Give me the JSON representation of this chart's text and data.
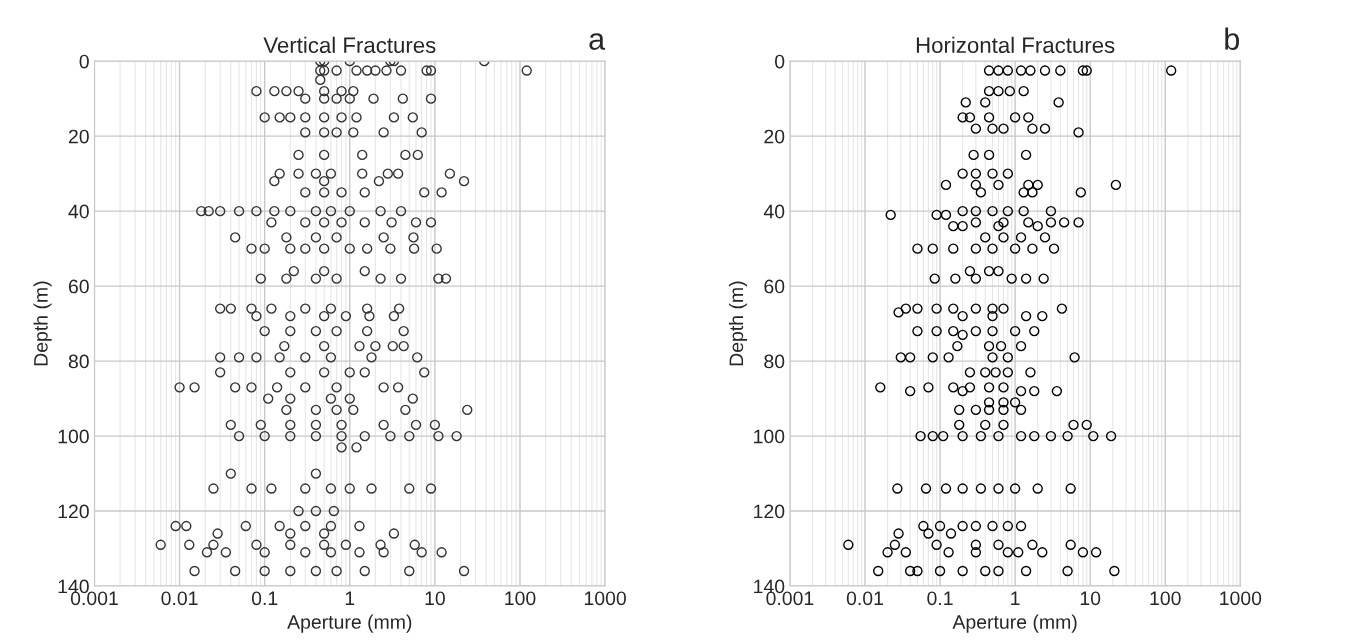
{
  "chart_data": [
    {
      "type": "scatter",
      "title": "Vertical Fractures",
      "xlabel": "Aperture (mm)",
      "ylabel": "Depth (m)",
      "annotations": [
        "a"
      ],
      "log": "x",
      "grid": true,
      "marker": "circle",
      "xlim": [
        0.001,
        1000
      ],
      "xticks": [
        0.001,
        0.01,
        0.1,
        1,
        10,
        100,
        1000
      ],
      "ylim": [
        140,
        0
      ],
      "yticks": [
        0,
        20,
        40,
        60,
        80,
        100,
        120,
        140
      ],
      "series": [
        {
          "color": "#333333",
          "x": [
            0.45,
            0.5,
            1,
            3,
            3.3,
            38,
            0.45,
            0.5,
            0.7,
            1.2,
            1.6,
            2,
            2.7,
            4,
            8,
            9,
            120,
            0.45,
            0.08,
            0.13,
            0.18,
            0.25,
            0.5,
            0.8,
            1.1,
            0.3,
            0.5,
            0.7,
            1,
            1.9,
            4.2,
            9,
            0.1,
            0.15,
            0.2,
            0.3,
            0.5,
            0.8,
            1.2,
            3.3,
            5.5,
            0.3,
            0.5,
            0.7,
            1.1,
            2.5,
            7,
            0.25,
            0.5,
            1.4,
            4.5,
            6.3,
            0.15,
            0.25,
            0.4,
            0.6,
            1.4,
            2.8,
            3.7,
            15,
            0.13,
            0.5,
            2.2,
            22,
            0.3,
            0.5,
            0.8,
            1.5,
            7.5,
            12,
            0.018,
            0.022,
            0.03,
            0.05,
            0.08,
            0.13,
            0.2,
            0.4,
            0.6,
            1,
            2.3,
            4,
            0.12,
            0.3,
            0.5,
            0.8,
            1.5,
            3.1,
            6,
            9,
            0.045,
            0.18,
            0.4,
            0.7,
            2.5,
            5.6,
            0.07,
            0.1,
            0.2,
            0.3,
            0.5,
            1,
            1.6,
            3,
            5.7,
            10.5,
            0.22,
            0.5,
            1.5,
            0.09,
            0.18,
            0.4,
            0.7,
            2.3,
            4,
            11,
            13.5,
            0.03,
            0.04,
            0.07,
            0.12,
            0.3,
            0.6,
            1.6,
            3.8,
            0.08,
            0.2,
            0.5,
            0.9,
            1.7,
            3.3,
            0.1,
            0.2,
            0.4,
            0.7,
            1.6,
            4.3,
            0.17,
            0.5,
            1.3,
            2,
            3.2,
            4.3,
            0.03,
            0.05,
            0.08,
            0.15,
            0.3,
            0.6,
            1.8,
            6.2,
            0.03,
            0.2,
            0.5,
            1,
            1.5,
            7.5,
            0.01,
            0.015,
            0.045,
            0.07,
            0.14,
            0.3,
            0.7,
            2.5,
            3.7,
            0.11,
            0.2,
            0.6,
            1,
            5.5,
            0.18,
            0.4,
            0.7,
            1.1,
            4.5,
            24,
            0.04,
            0.09,
            0.2,
            0.4,
            0.8,
            2.5,
            6,
            10,
            0.05,
            0.1,
            0.2,
            0.4,
            0.8,
            1.5,
            3,
            5,
            11,
            18,
            0.8,
            1.2,
            0.04,
            0.4,
            0.025,
            0.07,
            0.12,
            0.3,
            0.6,
            1,
            1.8,
            5,
            9,
            0.25,
            0.4,
            0.65,
            0.009,
            0.012,
            0.06,
            0.15,
            0.3,
            0.6,
            1.3,
            0.028,
            0.2,
            0.5,
            3.3,
            0.006,
            0.013,
            0.025,
            0.08,
            0.2,
            0.5,
            0.9,
            2.3,
            5.8,
            0.021,
            0.035,
            0.1,
            0.3,
            0.6,
            1.3,
            2.5,
            7,
            12,
            0.015,
            0.045,
            0.1,
            0.2,
            0.4,
            0.7,
            1.5,
            5,
            22
          ],
          "values": [
            0,
            0,
            0,
            0,
            0,
            0,
            2.5,
            2.5,
            2.5,
            2.5,
            2.5,
            2.5,
            2.5,
            2.5,
            2.5,
            2.5,
            2.5,
            5,
            8,
            8,
            8,
            8,
            8,
            8,
            8,
            10,
            10,
            10,
            10,
            10,
            10,
            10,
            15,
            15,
            15,
            15,
            15,
            15,
            15,
            15,
            15,
            19,
            19,
            19,
            19,
            19,
            19,
            25,
            25,
            25,
            25,
            25,
            30,
            30,
            30,
            30,
            30,
            30,
            30,
            30,
            32,
            32,
            32,
            32,
            35,
            35,
            35,
            35,
            35,
            35,
            40,
            40,
            40,
            40,
            40,
            40,
            40,
            40,
            40,
            40,
            40,
            40,
            43,
            43,
            43,
            43,
            43,
            43,
            43,
            43,
            47,
            47,
            47,
            47,
            47,
            47,
            50,
            50,
            50,
            50,
            50,
            50,
            50,
            50,
            50,
            50,
            56,
            56,
            56,
            58,
            58,
            58,
            58,
            58,
            58,
            58,
            58,
            66,
            66,
            66,
            66,
            66,
            66,
            66,
            66,
            68,
            68,
            68,
            68,
            68,
            68,
            72,
            72,
            72,
            72,
            72,
            72,
            76,
            76,
            76,
            76,
            76,
            76,
            79,
            79,
            79,
            79,
            79,
            79,
            79,
            79,
            83,
            83,
            83,
            83,
            83,
            83,
            87,
            87,
            87,
            87,
            87,
            87,
            87,
            87,
            87,
            90,
            90,
            90,
            90,
            90,
            93,
            93,
            93,
            93,
            93,
            93,
            97,
            97,
            97,
            97,
            97,
            97,
            97,
            97,
            100,
            100,
            100,
            100,
            100,
            100,
            100,
            100,
            100,
            100,
            103,
            103,
            110,
            110,
            114,
            114,
            114,
            114,
            114,
            114,
            114,
            114,
            114,
            120,
            120,
            120,
            124,
            124,
            124,
            124,
            124,
            124,
            124,
            126,
            126,
            126,
            126,
            129,
            129,
            129,
            129,
            129,
            129,
            129,
            129,
            129,
            131,
            131,
            131,
            131,
            131,
            131,
            131,
            131,
            131,
            136,
            136,
            136,
            136,
            136,
            136,
            136,
            136,
            136
          ]
        }
      ]
    },
    {
      "type": "scatter",
      "title": "Horizontal Fractures",
      "xlabel": "Aperture (mm)",
      "ylabel": "Depth (m)",
      "annotations": [
        "b"
      ],
      "log": "x",
      "grid": true,
      "marker": "circle",
      "xlim": [
        0.001,
        1000
      ],
      "xticks": [
        0.001,
        0.01,
        0.1,
        1,
        10,
        100,
        1000
      ],
      "ylim": [
        140,
        0
      ],
      "yticks": [
        0,
        20,
        40,
        60,
        80,
        100,
        120,
        140
      ],
      "series": [
        {
          "color": "#000000",
          "x": [
            0.45,
            0.6,
            0.8,
            1.2,
            1.6,
            2.5,
            4,
            8,
            9,
            120,
            0.45,
            0.6,
            0.85,
            1.3,
            0.22,
            0.4,
            3.8,
            0.2,
            0.25,
            0.45,
            1,
            1.5,
            0.3,
            0.5,
            0.7,
            1.7,
            2.5,
            7,
            0.28,
            0.45,
            1.4,
            0.2,
            0.3,
            0.5,
            0.8,
            0.12,
            0.3,
            0.6,
            1.5,
            2,
            22,
            0.35,
            1.3,
            1.7,
            7.5,
            0.2,
            0.3,
            0.5,
            0.8,
            1.3,
            3,
            0.022,
            0.09,
            0.12,
            0.3,
            0.7,
            1.5,
            3,
            4.5,
            7,
            0.15,
            0.2,
            0.6,
            2,
            0.4,
            0.7,
            1.2,
            2.5,
            0.05,
            0.08,
            0.15,
            0.3,
            0.5,
            1,
            1.7,
            3.3,
            0.25,
            0.45,
            0.6,
            0.085,
            0.16,
            0.3,
            0.9,
            1.4,
            2.4,
            0.035,
            0.05,
            0.09,
            0.15,
            0.3,
            0.5,
            0.7,
            4.2,
            0.028,
            0.2,
            0.5,
            1.4,
            2.3,
            0.05,
            0.09,
            0.15,
            0.3,
            0.5,
            1,
            1.8,
            0.2,
            0.17,
            0.45,
            0.65,
            1.2,
            0.03,
            0.04,
            0.08,
            0.13,
            0.5,
            0.8,
            6.2,
            0.25,
            0.4,
            0.55,
            0.8,
            1.6,
            0.016,
            0.07,
            0.15,
            0.25,
            0.45,
            0.7,
            0.04,
            0.2,
            1.2,
            1.8,
            3.6,
            0.45,
            0.7,
            1,
            0.18,
            0.3,
            0.45,
            0.7,
            1.2,
            0.18,
            0.4,
            0.7,
            6,
            9,
            0.055,
            0.08,
            0.11,
            0.2,
            0.35,
            0.6,
            1.2,
            1.8,
            3,
            5,
            11,
            19,
            0.027,
            0.065,
            0.12,
            0.2,
            0.35,
            0.6,
            1,
            2,
            5.5,
            0.06,
            0.1,
            0.2,
            0.3,
            0.5,
            0.8,
            1.2,
            0.028,
            0.07,
            0.14,
            0.006,
            0.025,
            0.09,
            0.3,
            0.6,
            1.7,
            5.5,
            0.02,
            0.035,
            0.13,
            0.3,
            0.8,
            1.1,
            2.3,
            8,
            12,
            0.015,
            0.04,
            0.05,
            0.1,
            0.2,
            0.4,
            0.6,
            1.4,
            5,
            21
          ],
          "values": [
            2.5,
            2.5,
            2.5,
            2.5,
            2.5,
            2.5,
            2.5,
            2.5,
            2.5,
            2.5,
            8,
            8,
            8,
            8,
            11,
            11,
            11,
            15,
            15,
            15,
            15,
            15,
            18,
            18,
            18,
            18,
            18,
            19,
            25,
            25,
            25,
            30,
            30,
            30,
            30,
            33,
            33,
            33,
            33,
            33,
            33,
            35,
            35,
            35,
            35,
            40,
            40,
            40,
            40,
            40,
            40,
            41,
            41,
            41,
            43,
            43,
            43,
            43,
            43,
            43,
            44,
            44,
            44,
            44,
            47,
            47,
            47,
            47,
            50,
            50,
            50,
            50,
            50,
            50,
            50,
            50,
            56,
            56,
            56,
            58,
            58,
            58,
            58,
            58,
            58,
            66,
            66,
            66,
            66,
            66,
            66,
            66,
            66,
            67,
            68,
            68,
            68,
            68,
            72,
            72,
            72,
            72,
            72,
            72,
            72,
            73,
            76,
            76,
            76,
            76,
            79,
            79,
            79,
            79,
            79,
            79,
            79,
            83,
            83,
            83,
            83,
            83,
            87,
            87,
            87,
            87,
            87,
            87,
            88,
            88,
            88,
            88,
            88,
            91,
            91,
            91,
            93,
            93,
            93,
            93,
            93,
            97,
            97,
            97,
            97,
            97,
            100,
            100,
            100,
            100,
            100,
            100,
            100,
            100,
            100,
            100,
            100,
            100,
            114,
            114,
            114,
            114,
            114,
            114,
            114,
            114,
            114,
            124,
            124,
            124,
            124,
            124,
            124,
            124,
            126,
            126,
            126,
            129,
            129,
            129,
            129,
            129,
            129,
            129,
            131,
            131,
            131,
            131,
            131,
            131,
            131,
            131,
            131,
            136,
            136,
            136,
            136,
            136,
            136,
            136,
            136,
            136,
            136
          ]
        }
      ]
    }
  ]
}
